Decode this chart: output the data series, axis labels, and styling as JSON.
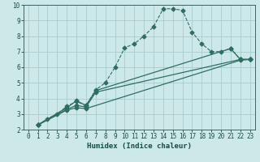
{
  "xlabel": "Humidex (Indice chaleur)",
  "background_color": "#cde8e8",
  "grid_color": "#aacccc",
  "line_color": "#2e6e62",
  "xlim": [
    -0.5,
    23.5
  ],
  "ylim": [
    2,
    10
  ],
  "xticks": [
    0,
    1,
    2,
    3,
    4,
    5,
    6,
    7,
    8,
    9,
    10,
    11,
    12,
    13,
    14,
    15,
    16,
    17,
    18,
    19,
    20,
    21,
    22,
    23
  ],
  "yticks": [
    2,
    3,
    4,
    5,
    6,
    7,
    8,
    9,
    10
  ],
  "lines": [
    {
      "x": [
        1,
        2,
        3,
        4,
        5,
        6,
        7,
        8,
        9,
        10,
        11,
        12,
        13,
        14,
        15,
        16,
        17,
        18,
        19,
        20,
        21,
        22,
        23
      ],
      "y": [
        2.3,
        2.7,
        3.0,
        3.5,
        3.8,
        3.55,
        4.55,
        5.0,
        6.0,
        7.25,
        7.5,
        8.0,
        8.6,
        9.75,
        9.75,
        9.65,
        8.25,
        7.5,
        7.0,
        7.0,
        7.2,
        6.5,
        6.5
      ],
      "style": "--",
      "marker": "D",
      "markersize": 2.5,
      "lw": 0.8
    },
    {
      "x": [
        1,
        4,
        5,
        6,
        7,
        21,
        22,
        23
      ],
      "y": [
        2.3,
        3.4,
        3.85,
        3.55,
        4.5,
        7.2,
        6.5,
        6.5
      ],
      "style": "-",
      "marker": "D",
      "markersize": 2.5,
      "lw": 0.9
    },
    {
      "x": [
        1,
        4,
        5,
        6,
        7,
        22,
        23
      ],
      "y": [
        2.3,
        3.3,
        3.55,
        3.45,
        4.4,
        6.5,
        6.5
      ],
      "style": "-",
      "marker": "D",
      "markersize": 2.5,
      "lw": 0.9
    },
    {
      "x": [
        1,
        4,
        5,
        6,
        22,
        23
      ],
      "y": [
        2.3,
        3.25,
        3.4,
        3.35,
        6.45,
        6.5
      ],
      "style": "-",
      "marker": "D",
      "markersize": 2.5,
      "lw": 0.9
    }
  ]
}
